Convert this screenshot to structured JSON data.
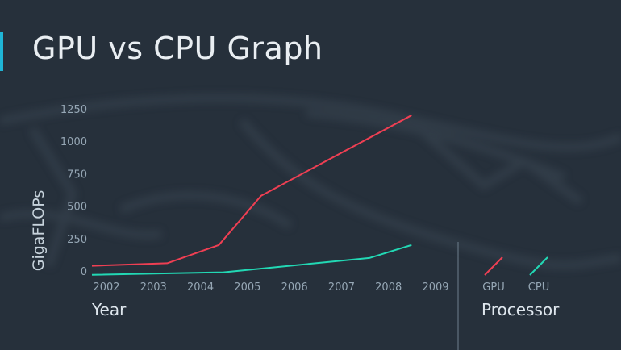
{
  "colors": {
    "background": "#26303b",
    "accent": "#1fb5d6",
    "gpu": "#ef3f53",
    "cpu": "#22d8b4",
    "tick_text": "#96a7b5"
  },
  "chart_data": {
    "type": "line",
    "title": "GPU vs CPU Graph",
    "xlabel": "Year",
    "ylabel": "GigaFLOPs",
    "x": [
      2002,
      2003,
      2004,
      2005,
      2006,
      2007,
      2008,
      2009
    ],
    "x_tick_labels": [
      "2002",
      "2003",
      "2004",
      "2005",
      "2006",
      "2007",
      "2008",
      "2009"
    ],
    "y_ticks": [
      0,
      250,
      500,
      750,
      1000,
      1250
    ],
    "y_tick_labels": [
      "0",
      "250",
      "500",
      "750",
      "1000",
      "1250"
    ],
    "ylim": [
      0,
      1250
    ],
    "grid": false,
    "legend_title": "Processor",
    "legend_position": "right",
    "series": [
      {
        "name": "GPU",
        "color": "#ef3f53",
        "points": [
          [
            2002,
            40
          ],
          [
            2003.6,
            60
          ],
          [
            2004.7,
            200
          ],
          [
            2005.6,
            580
          ],
          [
            2008.8,
            1200
          ]
        ]
      },
      {
        "name": "CPU",
        "color": "#22d8b4",
        "points": [
          [
            2002,
            -30
          ],
          [
            2004.8,
            -10
          ],
          [
            2007.9,
            100
          ],
          [
            2008.8,
            200
          ]
        ]
      }
    ]
  }
}
